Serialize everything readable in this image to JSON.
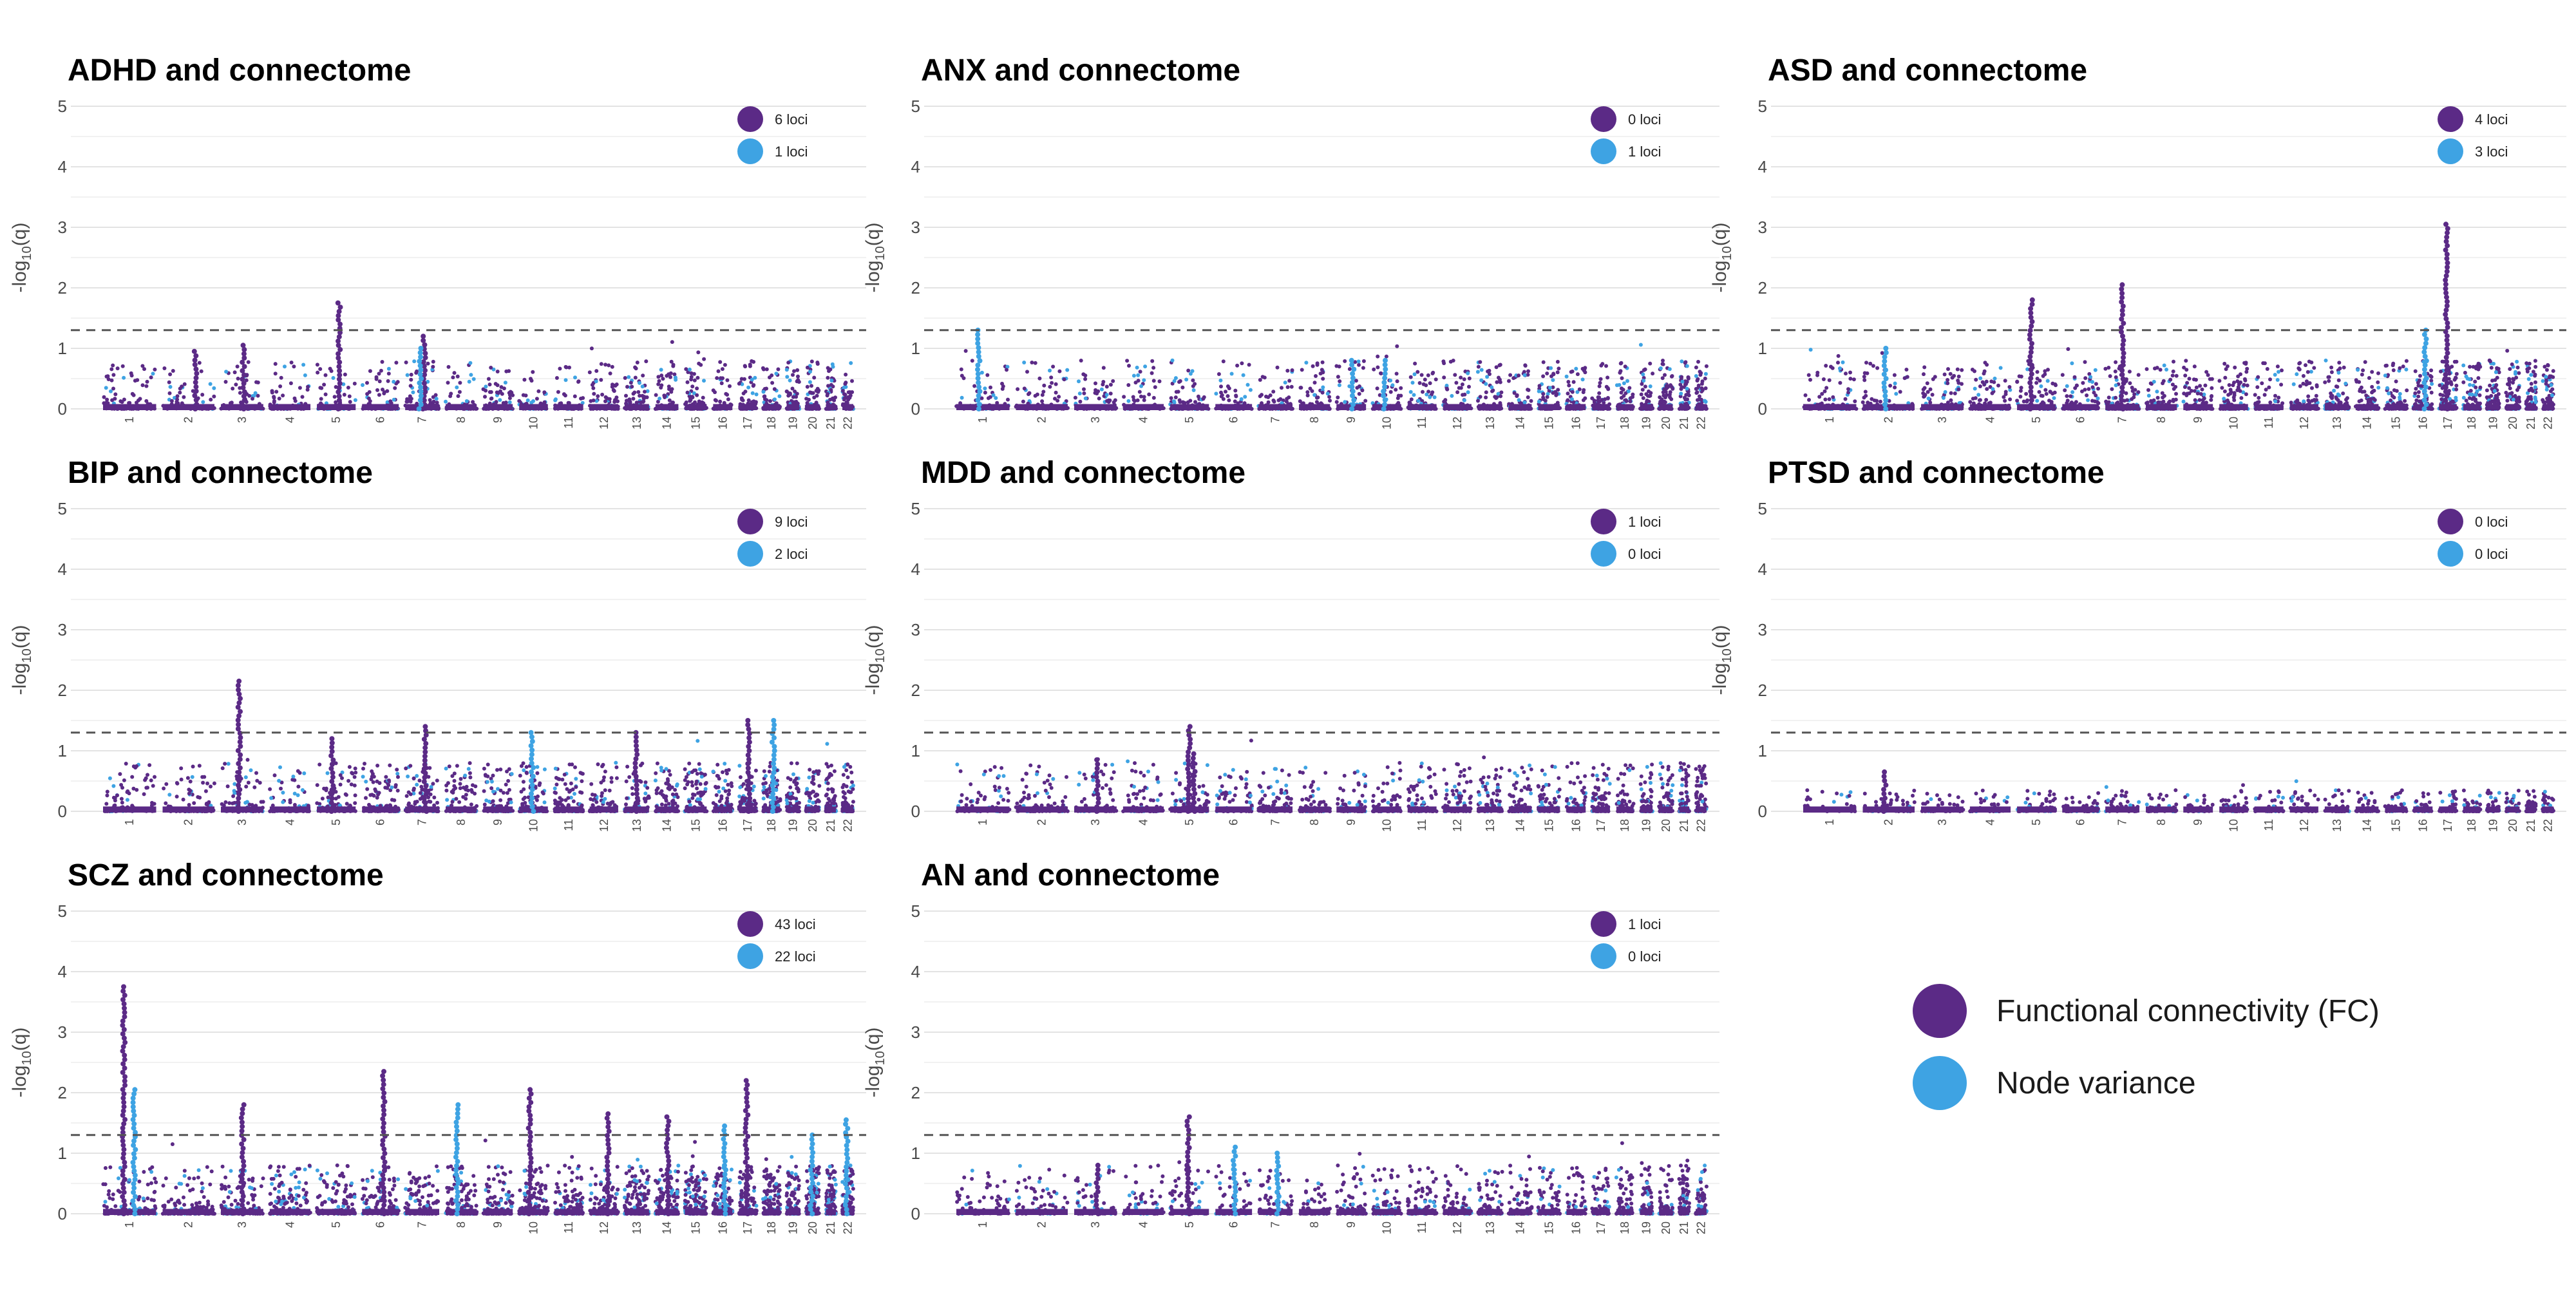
{
  "colors": {
    "fc": "#5b2a86",
    "nv": "#3ea3e3",
    "grid": "#e3e3e3",
    "threshold": "#555555"
  },
  "legend": {
    "fc_label": "Functional connectivity (FC)",
    "nv_label": "Node variance"
  },
  "chromosomes": [
    "1",
    "2",
    "3",
    "4",
    "5",
    "6",
    "7",
    "8",
    "9",
    "10",
    "11",
    "12",
    "13",
    "14",
    "15",
    "16",
    "17",
    "18",
    "19",
    "20",
    "21",
    "22"
  ],
  "threshold": 1.3,
  "ylim": [
    0,
    5
  ],
  "y_ticks": [
    "0",
    "1",
    "2",
    "3",
    "4",
    "5"
  ],
  "ylabel_prefix": "-log",
  "ylabel_sub": "10",
  "ylabel_suffix": "(q)",
  "chart_data": [
    {
      "type": "scatter",
      "title": "ADHD and connectome",
      "fc_loci": "6 loci",
      "nv_loci": "1 loci",
      "peaks": [
        {
          "chr": "5",
          "q": 1.75,
          "series": "FC"
        },
        {
          "chr": "7",
          "q": 1.2,
          "series": "FC"
        },
        {
          "chr": "7",
          "q": 1.0,
          "series": "Node variance"
        },
        {
          "chr": "3",
          "q": 1.05,
          "series": "FC"
        },
        {
          "chr": "2",
          "q": 0.95,
          "series": "FC"
        }
      ]
    },
    {
      "type": "scatter",
      "title": "ANX and connectome",
      "fc_loci": "0 loci",
      "nv_loci": "1 loci",
      "peaks": [
        {
          "chr": "1",
          "q": 1.3,
          "series": "Node variance"
        },
        {
          "chr": "10",
          "q": 0.8,
          "series": "Node variance"
        },
        {
          "chr": "9",
          "q": 0.8,
          "series": "Node variance"
        }
      ]
    },
    {
      "type": "scatter",
      "title": "ASD and connectome",
      "fc_loci": "4 loci",
      "nv_loci": "3 loci",
      "peaks": [
        {
          "chr": "17",
          "q": 3.05,
          "series": "FC"
        },
        {
          "chr": "7",
          "q": 2.05,
          "series": "FC"
        },
        {
          "chr": "5",
          "q": 1.8,
          "series": "FC"
        },
        {
          "chr": "16",
          "q": 1.3,
          "series": "Node variance"
        },
        {
          "chr": "2",
          "q": 1.0,
          "series": "Node variance"
        }
      ]
    },
    {
      "type": "scatter",
      "title": "BIP and connectome",
      "fc_loci": "9 loci",
      "nv_loci": "2 loci",
      "peaks": [
        {
          "chr": "3",
          "q": 2.15,
          "series": "FC"
        },
        {
          "chr": "18",
          "q": 1.5,
          "series": "Node variance"
        },
        {
          "chr": "17",
          "q": 1.5,
          "series": "FC"
        },
        {
          "chr": "7",
          "q": 1.4,
          "series": "FC"
        },
        {
          "chr": "10",
          "q": 1.3,
          "series": "Node variance"
        },
        {
          "chr": "13",
          "q": 1.3,
          "series": "FC"
        },
        {
          "chr": "5",
          "q": 1.2,
          "series": "FC"
        }
      ]
    },
    {
      "type": "scatter",
      "title": "MDD and connectome",
      "fc_loci": "1 loci",
      "nv_loci": "0 loci",
      "peaks": [
        {
          "chr": "5",
          "q": 1.4,
          "series": "FC"
        },
        {
          "chr": "5",
          "q": 0.95,
          "series": "FC"
        },
        {
          "chr": "3",
          "q": 0.85,
          "series": "FC"
        }
      ]
    },
    {
      "type": "scatter",
      "title": "PTSD and connectome",
      "fc_loci": "0 loci",
      "nv_loci": "0 loci",
      "peaks": [
        {
          "chr": "2",
          "q": 0.65,
          "series": "FC"
        }
      ]
    },
    {
      "type": "scatter",
      "title": "SCZ and connectome",
      "fc_loci": "43 loci",
      "nv_loci": "22 loci",
      "peaks": [
        {
          "chr": "1",
          "q": 3.75,
          "series": "FC"
        },
        {
          "chr": "6",
          "q": 2.35,
          "series": "FC"
        },
        {
          "chr": "17",
          "q": 2.2,
          "series": "FC"
        },
        {
          "chr": "1",
          "q": 2.05,
          "series": "Node variance"
        },
        {
          "chr": "10",
          "q": 2.05,
          "series": "FC"
        },
        {
          "chr": "3",
          "q": 1.8,
          "series": "FC"
        },
        {
          "chr": "8",
          "q": 1.8,
          "series": "Node variance"
        },
        {
          "chr": "12",
          "q": 1.65,
          "series": "FC"
        },
        {
          "chr": "14",
          "q": 1.6,
          "series": "FC"
        },
        {
          "chr": "22",
          "q": 1.55,
          "series": "Node variance"
        },
        {
          "chr": "16",
          "q": 1.45,
          "series": "Node variance"
        },
        {
          "chr": "20",
          "q": 1.3,
          "series": "Node variance"
        }
      ]
    },
    {
      "type": "scatter",
      "title": "AN and connectome",
      "fc_loci": "1 loci",
      "nv_loci": "0 loci",
      "peaks": [
        {
          "chr": "5",
          "q": 1.6,
          "series": "FC"
        },
        {
          "chr": "6",
          "q": 1.1,
          "series": "Node variance"
        },
        {
          "chr": "7",
          "q": 1.0,
          "series": "Node variance"
        },
        {
          "chr": "3",
          "q": 0.8,
          "series": "FC"
        }
      ]
    }
  ]
}
